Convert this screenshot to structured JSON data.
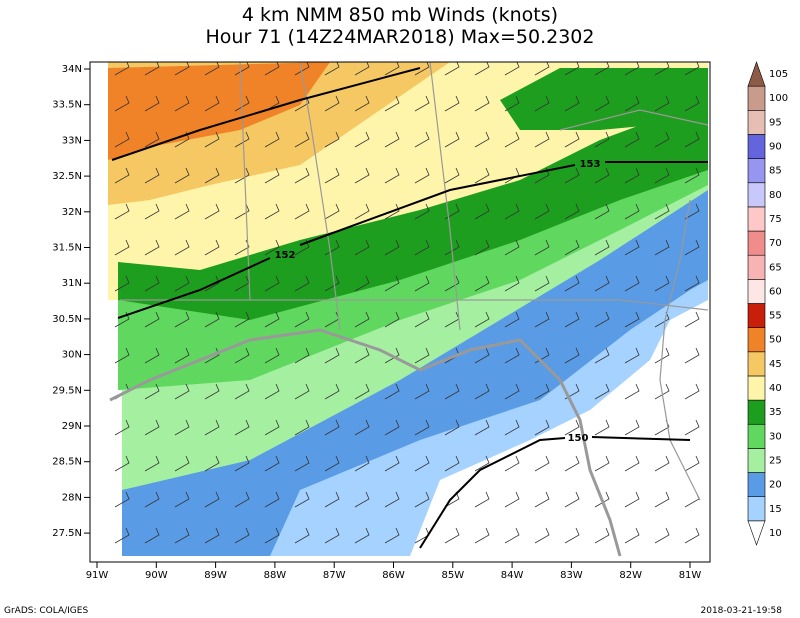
{
  "title": [
    "4 km NMM 850 mb Winds (knots)",
    "Hour 71 (14Z24MAR2018) Max=50.2302"
  ],
  "latitude_labels": [
    "34N",
    "33.5N",
    "33N",
    "32.5N",
    "32N",
    "31.5N",
    "31N",
    "30.5N",
    "30N",
    "29.5N",
    "29N",
    "28.5N",
    "28N",
    "27.5N"
  ],
  "longitude_labels": [
    "91W",
    "90W",
    "89W",
    "88W",
    "87W",
    "86W",
    "85W",
    "84W",
    "83W",
    "82W",
    "81W"
  ],
  "colorbar": {
    "labels": [
      10,
      15,
      20,
      25,
      30,
      35,
      40,
      45,
      50,
      55,
      60,
      65,
      70,
      75,
      80,
      85,
      90,
      95,
      100,
      105
    ],
    "colors": [
      "#ffffff",
      "#a5d2ff",
      "#5a9be6",
      "#a5f0a0",
      "#60d860",
      "#1e9e1e",
      "#fff5aa",
      "#f5c864",
      "#f08228",
      "#c81e0a",
      "#ffe6e6",
      "#f8b4b4",
      "#f08c8c",
      "#ffc8c8",
      "#c8c8fa",
      "#9696f0",
      "#6464dc",
      "#e6beb4",
      "#c89b8c",
      "#8c5a46"
    ]
  },
  "contour_labels": [
    153,
    152,
    150
  ],
  "footer": {
    "left": "GrADS: COLA/IGES",
    "right": "2018-03-21-19:58"
  }
}
